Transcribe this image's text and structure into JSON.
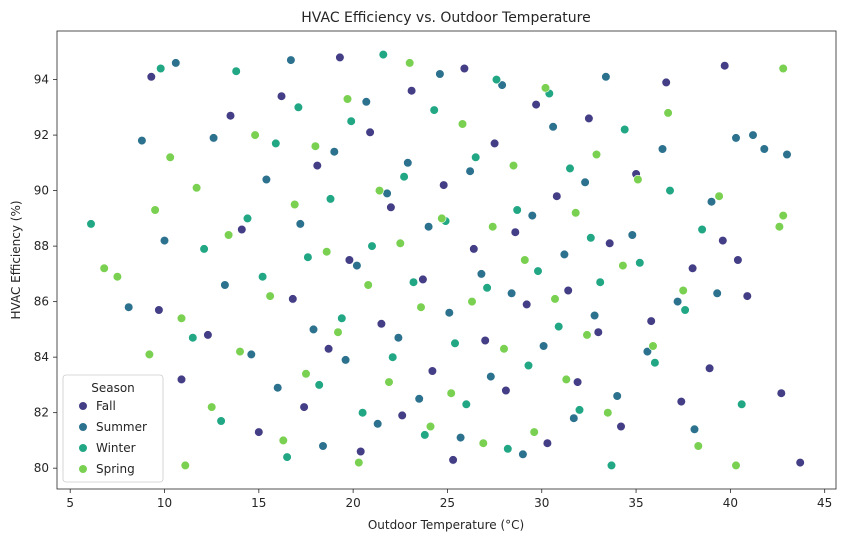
{
  "chart_data": {
    "type": "scatter",
    "title": "HVAC Efficiency vs. Outdoor Temperature",
    "xlabel": "Outdoor Temperature (°C)",
    "ylabel": "HVAC Efficiency (%)",
    "xlim": [
      4.3,
      45.6
    ],
    "ylim": [
      79.25,
      95.75
    ],
    "xticks": [
      5,
      10,
      15,
      20,
      25,
      30,
      35,
      40,
      45
    ],
    "yticks": [
      80,
      82,
      84,
      86,
      88,
      90,
      92,
      94
    ],
    "grid": false,
    "legend": {
      "title": "Season",
      "placement": "lower-left",
      "entries": [
        "Fall",
        "Summer",
        "Winter",
        "Spring"
      ]
    },
    "colors": {
      "Fall": "#433e85",
      "Summer": "#2c728e",
      "Winter": "#22a785",
      "Spring": "#7ad151"
    },
    "series": [
      {
        "name": "Fall",
        "points": [
          [
            9.3,
            94.1
          ],
          [
            9.7,
            85.7
          ],
          [
            10.9,
            83.2
          ],
          [
            12.3,
            84.8
          ],
          [
            13.5,
            92.7
          ],
          [
            14.1,
            88.6
          ],
          [
            15.0,
            81.3
          ],
          [
            16.2,
            93.4
          ],
          [
            16.8,
            86.1
          ],
          [
            17.4,
            82.2
          ],
          [
            18.1,
            90.9
          ],
          [
            18.7,
            84.3
          ],
          [
            19.3,
            94.8
          ],
          [
            19.8,
            87.5
          ],
          [
            20.4,
            80.6
          ],
          [
            20.9,
            92.1
          ],
          [
            21.5,
            85.2
          ],
          [
            22.0,
            89.4
          ],
          [
            22.6,
            81.9
          ],
          [
            23.1,
            93.6
          ],
          [
            23.7,
            86.8
          ],
          [
            24.2,
            83.5
          ],
          [
            24.8,
            90.2
          ],
          [
            25.3,
            80.3
          ],
          [
            25.9,
            94.4
          ],
          [
            26.4,
            87.9
          ],
          [
            27.0,
            84.6
          ],
          [
            27.5,
            91.7
          ],
          [
            28.1,
            82.8
          ],
          [
            28.6,
            88.5
          ],
          [
            29.2,
            85.9
          ],
          [
            29.7,
            93.1
          ],
          [
            30.3,
            80.9
          ],
          [
            30.8,
            89.8
          ],
          [
            31.4,
            86.4
          ],
          [
            31.9,
            83.1
          ],
          [
            32.5,
            92.6
          ],
          [
            33.0,
            84.9
          ],
          [
            33.6,
            88.1
          ],
          [
            34.2,
            81.5
          ],
          [
            35.0,
            90.6
          ],
          [
            35.8,
            85.3
          ],
          [
            36.6,
            93.9
          ],
          [
            37.4,
            82.4
          ],
          [
            38.0,
            87.2
          ],
          [
            38.9,
            83.6
          ],
          [
            39.6,
            88.2
          ],
          [
            39.7,
            94.5
          ],
          [
            40.4,
            87.5
          ],
          [
            40.9,
            86.2
          ],
          [
            42.7,
            82.7
          ],
          [
            43.7,
            80.2
          ]
        ]
      },
      {
        "name": "Summer",
        "points": [
          [
            8.1,
            85.8
          ],
          [
            8.8,
            91.8
          ],
          [
            10.0,
            88.2
          ],
          [
            10.6,
            94.6
          ],
          [
            12.6,
            91.9
          ],
          [
            13.2,
            86.6
          ],
          [
            14.6,
            84.1
          ],
          [
            15.4,
            90.4
          ],
          [
            16.0,
            82.9
          ],
          [
            16.7,
            94.7
          ],
          [
            17.2,
            88.8
          ],
          [
            17.9,
            85.0
          ],
          [
            18.4,
            80.8
          ],
          [
            19.0,
            91.4
          ],
          [
            19.6,
            83.9
          ],
          [
            20.2,
            87.3
          ],
          [
            20.7,
            93.2
          ],
          [
            21.3,
            81.6
          ],
          [
            21.8,
            89.9
          ],
          [
            22.4,
            84.7
          ],
          [
            22.9,
            91.0
          ],
          [
            23.5,
            82.5
          ],
          [
            24.0,
            88.7
          ],
          [
            24.6,
            94.2
          ],
          [
            25.1,
            85.6
          ],
          [
            25.7,
            81.1
          ],
          [
            26.2,
            90.7
          ],
          [
            26.8,
            87.0
          ],
          [
            27.3,
            83.3
          ],
          [
            27.9,
            93.8
          ],
          [
            28.4,
            86.3
          ],
          [
            29.0,
            80.5
          ],
          [
            29.5,
            89.1
          ],
          [
            30.1,
            84.4
          ],
          [
            30.6,
            92.3
          ],
          [
            31.2,
            87.7
          ],
          [
            31.7,
            81.8
          ],
          [
            32.3,
            90.3
          ],
          [
            32.8,
            85.5
          ],
          [
            33.4,
            94.1
          ],
          [
            34.0,
            82.6
          ],
          [
            34.8,
            88.4
          ],
          [
            35.6,
            84.2
          ],
          [
            36.4,
            91.5
          ],
          [
            37.2,
            86.0
          ],
          [
            38.1,
            81.4
          ],
          [
            39.0,
            89.6
          ],
          [
            39.3,
            86.3
          ],
          [
            40.3,
            91.9
          ],
          [
            41.2,
            92.0
          ],
          [
            41.8,
            91.5
          ],
          [
            43.0,
            91.3
          ]
        ]
      },
      {
        "name": "Winter",
        "points": [
          [
            6.1,
            88.8
          ],
          [
            9.8,
            94.4
          ],
          [
            11.5,
            84.7
          ],
          [
            12.1,
            87.9
          ],
          [
            13.0,
            81.7
          ],
          [
            13.8,
            94.3
          ],
          [
            14.4,
            89.0
          ],
          [
            15.2,
            86.9
          ],
          [
            15.9,
            91.7
          ],
          [
            16.5,
            80.4
          ],
          [
            17.1,
            93.0
          ],
          [
            17.6,
            87.6
          ],
          [
            18.2,
            83.0
          ],
          [
            18.8,
            89.7
          ],
          [
            19.4,
            85.4
          ],
          [
            19.9,
            92.5
          ],
          [
            20.5,
            82.0
          ],
          [
            21.0,
            88.0
          ],
          [
            21.6,
            94.9
          ],
          [
            22.1,
            84.0
          ],
          [
            22.7,
            90.5
          ],
          [
            23.2,
            86.7
          ],
          [
            23.8,
            81.2
          ],
          [
            24.3,
            92.9
          ],
          [
            24.9,
            88.9
          ],
          [
            25.4,
            84.5
          ],
          [
            26.0,
            82.3
          ],
          [
            26.5,
            91.2
          ],
          [
            27.1,
            86.5
          ],
          [
            27.6,
            94.0
          ],
          [
            28.2,
            80.7
          ],
          [
            28.7,
            89.3
          ],
          [
            29.3,
            83.7
          ],
          [
            29.8,
            87.1
          ],
          [
            30.4,
            93.5
          ],
          [
            30.9,
            85.1
          ],
          [
            31.5,
            90.8
          ],
          [
            32.0,
            82.1
          ],
          [
            32.6,
            88.3
          ],
          [
            33.1,
            86.7
          ],
          [
            33.7,
            80.1
          ],
          [
            34.4,
            92.2
          ],
          [
            35.2,
            87.4
          ],
          [
            36.0,
            83.8
          ],
          [
            36.8,
            90.0
          ],
          [
            37.6,
            85.7
          ],
          [
            38.5,
            88.6
          ],
          [
            40.6,
            82.3
          ]
        ]
      },
      {
        "name": "Spring",
        "points": [
          [
            6.8,
            87.2
          ],
          [
            7.5,
            86.9
          ],
          [
            9.2,
            84.1
          ],
          [
            9.5,
            89.3
          ],
          [
            10.3,
            91.2
          ],
          [
            10.9,
            85.4
          ],
          [
            11.1,
            80.1
          ],
          [
            11.7,
            90.1
          ],
          [
            12.5,
            82.2
          ],
          [
            13.4,
            88.4
          ],
          [
            14.0,
            84.2
          ],
          [
            14.8,
            92.0
          ],
          [
            15.6,
            86.2
          ],
          [
            16.3,
            81.0
          ],
          [
            16.9,
            89.5
          ],
          [
            17.5,
            83.4
          ],
          [
            18.0,
            91.6
          ],
          [
            18.6,
            87.8
          ],
          [
            19.2,
            84.9
          ],
          [
            19.7,
            93.3
          ],
          [
            20.3,
            80.2
          ],
          [
            20.8,
            86.6
          ],
          [
            21.4,
            90.0
          ],
          [
            21.9,
            83.1
          ],
          [
            22.5,
            88.1
          ],
          [
            23.0,
            94.6
          ],
          [
            23.6,
            85.8
          ],
          [
            24.1,
            81.5
          ],
          [
            24.7,
            89.0
          ],
          [
            25.2,
            82.7
          ],
          [
            25.8,
            92.4
          ],
          [
            26.3,
            86.0
          ],
          [
            26.9,
            80.9
          ],
          [
            27.4,
            88.7
          ],
          [
            28.0,
            84.3
          ],
          [
            28.5,
            90.9
          ],
          [
            29.1,
            87.5
          ],
          [
            29.6,
            81.3
          ],
          [
            30.2,
            93.7
          ],
          [
            30.7,
            86.1
          ],
          [
            31.3,
            83.2
          ],
          [
            31.8,
            89.2
          ],
          [
            32.4,
            84.8
          ],
          [
            32.9,
            91.3
          ],
          [
            33.5,
            82.0
          ],
          [
            34.3,
            87.3
          ],
          [
            35.1,
            90.4
          ],
          [
            35.9,
            84.4
          ],
          [
            36.7,
            92.8
          ],
          [
            37.5,
            86.4
          ],
          [
            38.3,
            80.8
          ],
          [
            39.4,
            89.8
          ],
          [
            40.3,
            80.1
          ],
          [
            42.6,
            88.7
          ],
          [
            42.8,
            89.1
          ],
          [
            42.8,
            94.4
          ]
        ]
      }
    ]
  }
}
